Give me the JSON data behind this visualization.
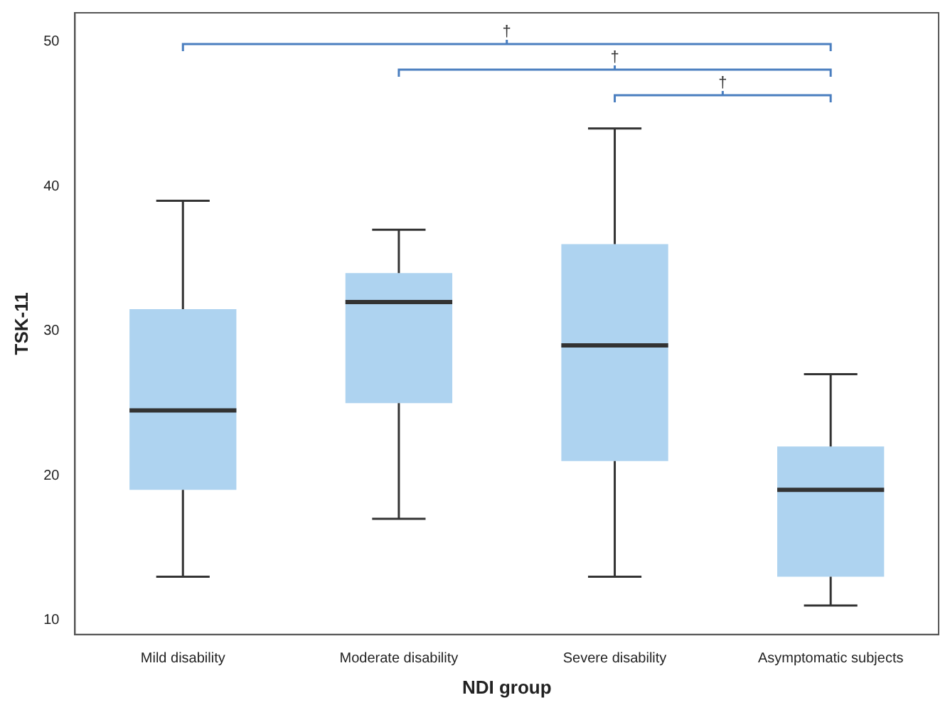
{
  "chart_data": {
    "type": "box",
    "xlabel": "NDI group",
    "ylabel": "TSK-11",
    "categories": [
      "Mild disability",
      "Moderate disability",
      "Severe disability",
      "Asymptomatic subjects"
    ],
    "boxes": [
      {
        "low": 13,
        "q1": 19,
        "median": 24.5,
        "q3": 31.5,
        "high": 39
      },
      {
        "low": 17,
        "q1": 25,
        "median": 32,
        "q3": 34,
        "high": 37
      },
      {
        "low": 13,
        "q1": 21,
        "median": 29,
        "q3": 36,
        "high": 44
      },
      {
        "low": 11,
        "q1": 13,
        "median": 19,
        "q3": 22,
        "high": 27
      }
    ],
    "color": "#aed3f0",
    "ylim": [
      9,
      52
    ],
    "yticks": [
      10,
      20,
      30,
      40,
      50
    ],
    "grid": false,
    "legend": false,
    "annotations": [
      "†",
      "†",
      "†"
    ]
  }
}
